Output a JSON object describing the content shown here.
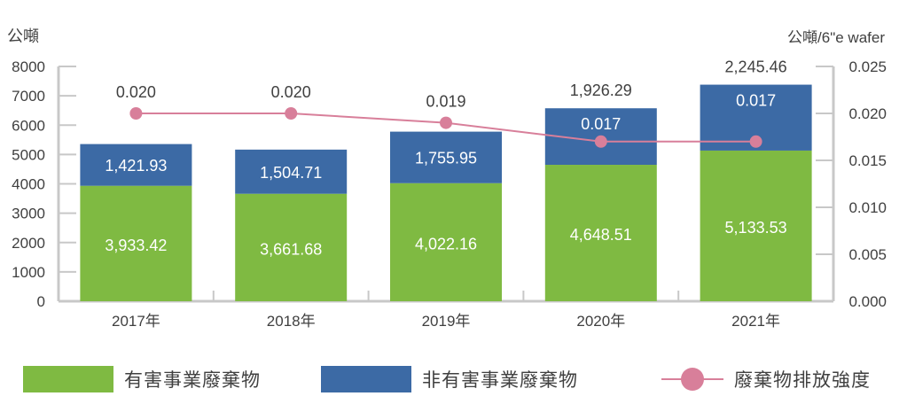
{
  "chart_data": {
    "type": "bar",
    "stacked": true,
    "categories": [
      "2017年",
      "2018年",
      "2019年",
      "2020年",
      "2021年"
    ],
    "ylabel_left": "公噸",
    "ylabel_right": "公噸/6\"e wafer",
    "ylim_left": [
      0,
      8000
    ],
    "ylim_right": [
      0,
      0.025
    ],
    "yticks_left": [
      "0",
      "1000",
      "2000",
      "3000",
      "4000",
      "5000",
      "6000",
      "7000",
      "8000"
    ],
    "yticks_right": [
      "0.000",
      "0.005",
      "0.010",
      "0.015",
      "0.020",
      "0.025"
    ],
    "series": [
      {
        "name": "有害事業廢棄物",
        "type": "bar",
        "axis": "left",
        "color": "#7fba42",
        "values": [
          3933.42,
          3661.68,
          4022.16,
          4648.51,
          5133.53
        ],
        "labels": [
          "3,933.42",
          "3,661.68",
          "4,022.16",
          "4,648.51",
          "5,133.53"
        ]
      },
      {
        "name": "非有害事業廢棄物",
        "type": "bar",
        "axis": "left",
        "color": "#3c6aa5",
        "values": [
          1421.93,
          1504.71,
          1755.95,
          1926.29,
          2245.46
        ],
        "labels": [
          "1,421.93",
          "1,504.71",
          "1,755.95",
          "1,926.29",
          "2,245.46"
        ]
      },
      {
        "name": "廢棄物排放強度",
        "type": "line",
        "axis": "right",
        "color": "#d87f9a",
        "values": [
          0.02,
          0.02,
          0.019,
          0.017,
          0.017
        ],
        "labels": [
          "0.020",
          "0.020",
          "0.019",
          "0.017",
          "0.017"
        ]
      }
    ],
    "grid": false,
    "legend_position": "bottom"
  }
}
